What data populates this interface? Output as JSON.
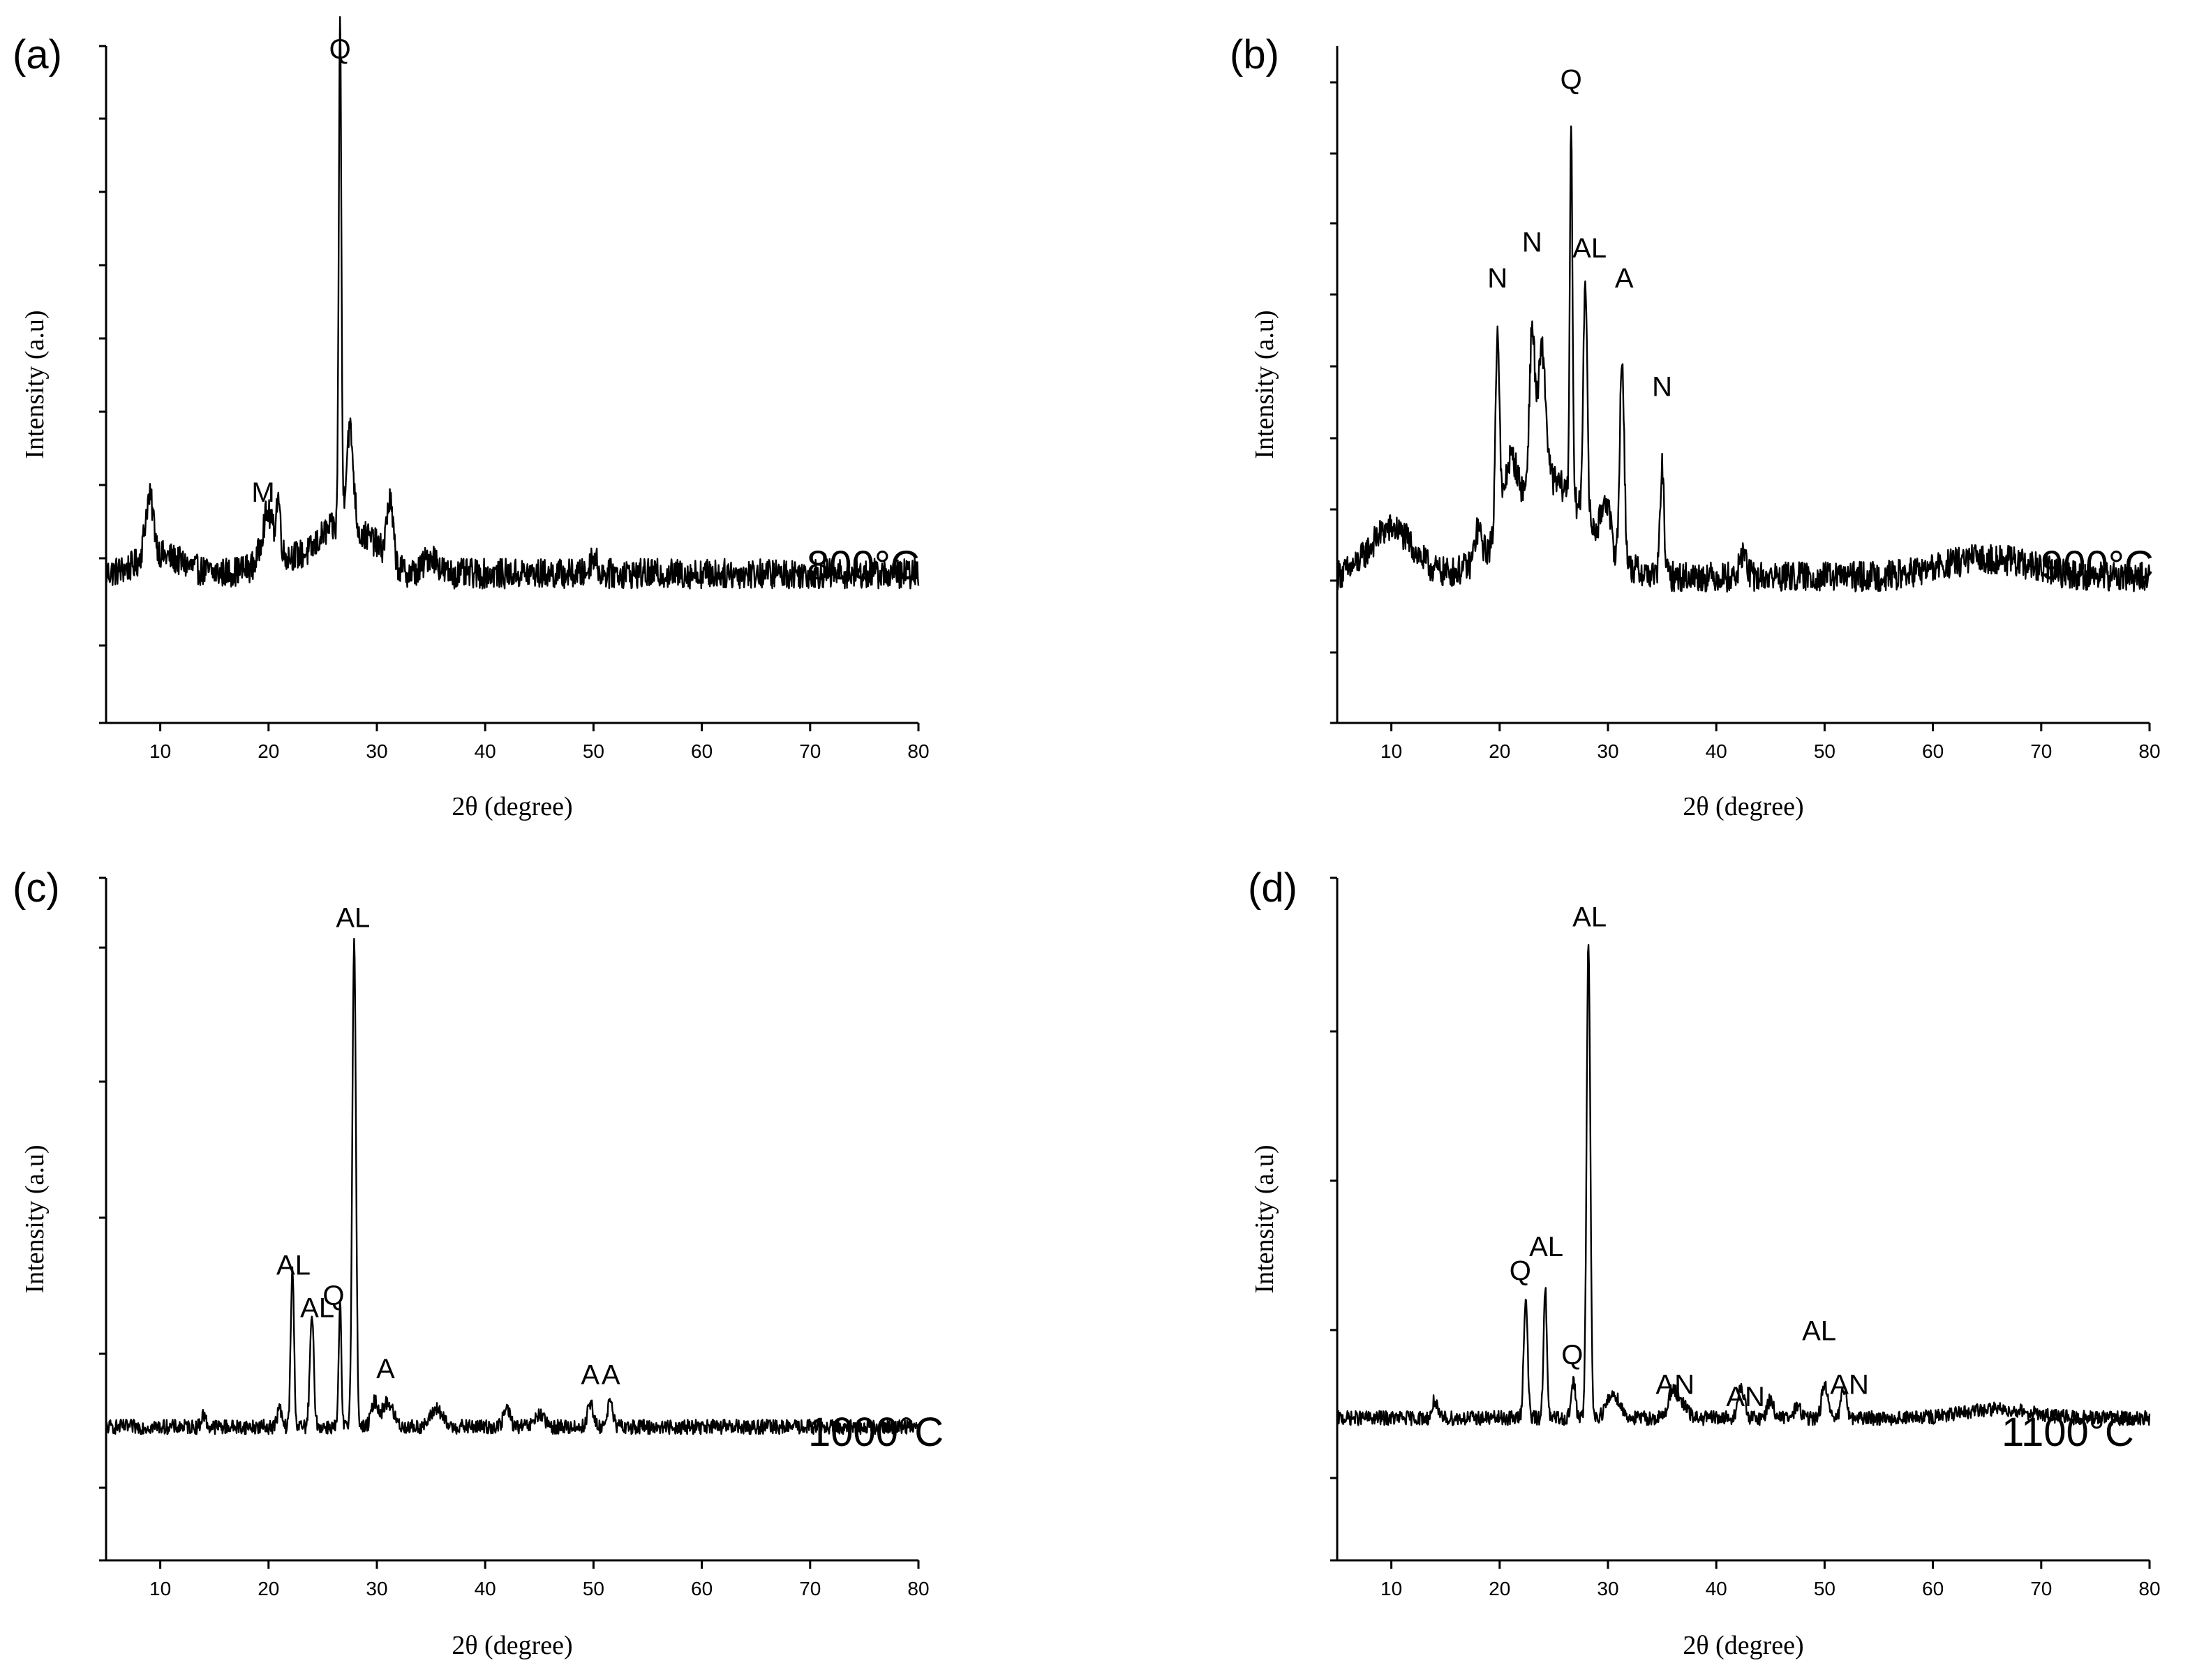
{
  "chart_data": [
    {
      "panel": "(a)",
      "type": "line",
      "xlabel": "2θ (degree)",
      "ylabel": "Intensity (a.u)",
      "xlim": [
        5,
        80
      ],
      "ylim": [
        0,
        1
      ],
      "xticks": [
        10,
        20,
        30,
        40,
        50,
        60,
        70,
        80
      ],
      "grid": false,
      "temperature": "800°C",
      "baseline": 0.12,
      "noise": 0.025,
      "series": [
        {
          "name": "800°C pattern",
          "peaks": [
            {
              "x": 9.0,
              "y": 0.1,
              "w": 0.4
            },
            {
              "x": 10.0,
              "y": 0.03,
              "w": 2.0
            },
            {
              "x": 19.9,
              "y": 0.08,
              "w": 0.5
            },
            {
              "x": 20.9,
              "y": 0.09,
              "w": 0.2
            },
            {
              "x": 22.0,
              "y": 0.03,
              "w": 2.5
            },
            {
              "x": 25.8,
              "y": 0.06,
              "w": 1.2
            },
            {
              "x": 26.6,
              "y": 0.85,
              "w": 0.12
            },
            {
              "x": 27.5,
              "y": 0.18,
              "w": 0.35
            },
            {
              "x": 29.0,
              "y": 0.06,
              "w": 1.5
            },
            {
              "x": 31.2,
              "y": 0.1,
              "w": 0.3
            },
            {
              "x": 35.0,
              "y": 0.03,
              "w": 0.6
            },
            {
              "x": 50.0,
              "y": 0.03,
              "w": 0.3
            }
          ]
        }
      ],
      "annotations": [
        {
          "text": "M",
          "x": 19.5,
          "y": 0.24
        },
        {
          "text": "Q",
          "x": 26.6,
          "y": 0.98
        }
      ]
    },
    {
      "panel": "(b)",
      "type": "line",
      "xlabel": "2θ (degree)",
      "ylabel": "Intensity (a.u)",
      "xlim": [
        5,
        80
      ],
      "ylim": [
        0,
        1
      ],
      "xticks": [
        10,
        20,
        30,
        40,
        50,
        60,
        70,
        80
      ],
      "grid": false,
      "temperature": "900°C",
      "baseline": 0.12,
      "noise": 0.025,
      "series": [
        {
          "name": "900°C pattern",
          "peaks": [
            {
              "x": 10.0,
              "y": 0.08,
              "w": 2.0
            },
            {
              "x": 18.0,
              "y": 0.05,
              "w": 0.3
            },
            {
              "x": 19.8,
              "y": 0.34,
              "w": 0.18
            },
            {
              "x": 21.0,
              "y": 0.1,
              "w": 0.6
            },
            {
              "x": 23.0,
              "y": 0.26,
              "w": 0.25
            },
            {
              "x": 23.9,
              "y": 0.22,
              "w": 0.35
            },
            {
              "x": 24.5,
              "y": 0.16,
              "w": 3.5
            },
            {
              "x": 26.6,
              "y": 0.63,
              "w": 0.12
            },
            {
              "x": 27.9,
              "y": 0.4,
              "w": 0.18
            },
            {
              "x": 29.8,
              "y": 0.08,
              "w": 0.4
            },
            {
              "x": 31.3,
              "y": 0.34,
              "w": 0.2
            },
            {
              "x": 35.0,
              "y": 0.18,
              "w": 0.18
            },
            {
              "x": 42.5,
              "y": 0.04,
              "w": 0.3
            },
            {
              "x": 65.0,
              "y": 0.03,
              "w": 4.0
            }
          ]
        }
      ],
      "annotations": [
        {
          "text": "Q",
          "x": 26.6,
          "y": 0.93
        },
        {
          "text": "N",
          "x": 19.8,
          "y": 0.6
        },
        {
          "text": "N",
          "x": 23.0,
          "y": 0.66
        },
        {
          "text": "AL",
          "x": 28.3,
          "y": 0.65
        },
        {
          "text": "A",
          "x": 31.5,
          "y": 0.6
        },
        {
          "text": "N",
          "x": 35.0,
          "y": 0.42
        }
      ]
    },
    {
      "panel": "(c)",
      "type": "line",
      "xlabel": "2θ (degree)",
      "ylabel": "Intensity (a.u)",
      "xlim": [
        5,
        80
      ],
      "ylim": [
        0,
        1
      ],
      "xticks": [
        10,
        20,
        30,
        40,
        50,
        60,
        70,
        80
      ],
      "grid": false,
      "temperature": "1000°C",
      "baseline": 0.1,
      "noise": 0.012,
      "series": [
        {
          "name": "1000°C pattern",
          "peaks": [
            {
              "x": 14.0,
              "y": 0.02,
              "w": 0.2
            },
            {
              "x": 21.0,
              "y": 0.03,
              "w": 0.2
            },
            {
              "x": 22.2,
              "y": 0.26,
              "w": 0.15
            },
            {
              "x": 24.0,
              "y": 0.18,
              "w": 0.18
            },
            {
              "x": 26.6,
              "y": 0.2,
              "w": 0.12
            },
            {
              "x": 27.9,
              "y": 0.8,
              "w": 0.17
            },
            {
              "x": 29.8,
              "y": 0.04,
              "w": 0.3
            },
            {
              "x": 31.0,
              "y": 0.04,
              "w": 0.5
            },
            {
              "x": 35.5,
              "y": 0.03,
              "w": 0.5
            },
            {
              "x": 42.0,
              "y": 0.03,
              "w": 0.3
            },
            {
              "x": 45.0,
              "y": 0.02,
              "w": 0.4
            },
            {
              "x": 49.7,
              "y": 0.04,
              "w": 0.25
            },
            {
              "x": 51.5,
              "y": 0.04,
              "w": 0.25
            }
          ]
        }
      ],
      "annotations": [
        {
          "text": "AL",
          "x": 27.8,
          "y": 0.92
        },
        {
          "text": "AL",
          "x": 22.3,
          "y": 0.35
        },
        {
          "text": "AL",
          "x": 24.5,
          "y": 0.28
        },
        {
          "text": "Q",
          "x": 26.0,
          "y": 0.3
        },
        {
          "text": "A",
          "x": 30.8,
          "y": 0.18
        },
        {
          "text": "A",
          "x": 49.7,
          "y": 0.17
        },
        {
          "text": "A",
          "x": 51.6,
          "y": 0.17
        }
      ]
    },
    {
      "panel": "(d)",
      "type": "line",
      "xlabel": "2θ (degree)",
      "ylabel": "Intensity (a.u)",
      "xlim": [
        5,
        80
      ],
      "ylim": [
        0,
        1
      ],
      "xticks": [
        10,
        20,
        30,
        40,
        50,
        60,
        70,
        80
      ],
      "grid": false,
      "temperature": "1100°C",
      "baseline": 0.1,
      "noise": 0.012,
      "series": [
        {
          "name": "1100°C pattern",
          "peaks": [
            {
              "x": 14.0,
              "y": 0.03,
              "w": 0.2
            },
            {
              "x": 22.4,
              "y": 0.2,
              "w": 0.18
            },
            {
              "x": 24.2,
              "y": 0.22,
              "w": 0.15
            },
            {
              "x": 26.8,
              "y": 0.06,
              "w": 0.2
            },
            {
              "x": 28.2,
              "y": 0.8,
              "w": 0.17
            },
            {
              "x": 30.5,
              "y": 0.04,
              "w": 0.6
            },
            {
              "x": 36.0,
              "y": 0.05,
              "w": 0.4
            },
            {
              "x": 37.0,
              "y": 0.02,
              "w": 0.4
            },
            {
              "x": 42.3,
              "y": 0.05,
              "w": 0.3
            },
            {
              "x": 45.0,
              "y": 0.03,
              "w": 0.3
            },
            {
              "x": 47.5,
              "y": 0.02,
              "w": 0.3
            },
            {
              "x": 50.0,
              "y": 0.06,
              "w": 0.25
            },
            {
              "x": 51.8,
              "y": 0.05,
              "w": 0.25
            },
            {
              "x": 66.0,
              "y": 0.015,
              "w": 3.0
            }
          ]
        }
      ],
      "annotations": [
        {
          "text": "AL",
          "x": 28.3,
          "y": 0.92
        },
        {
          "text": "Q",
          "x": 21.9,
          "y": 0.33
        },
        {
          "text": "AL",
          "x": 24.3,
          "y": 0.37
        },
        {
          "text": "Q",
          "x": 26.7,
          "y": 0.19
        },
        {
          "text": "AN",
          "x": 36.2,
          "y": 0.14
        },
        {
          "text": "AN",
          "x": 42.7,
          "y": 0.12
        },
        {
          "text": "AL",
          "x": 49.5,
          "y": 0.23
        },
        {
          "text": "AN",
          "x": 52.3,
          "y": 0.14
        }
      ]
    }
  ]
}
